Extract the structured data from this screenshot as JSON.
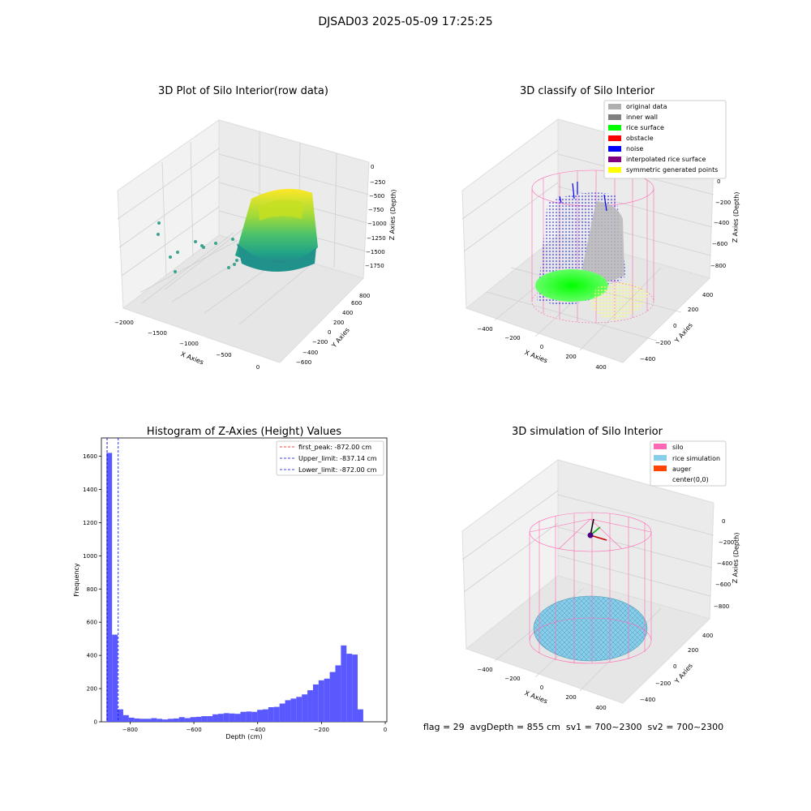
{
  "figure": {
    "title": "DJSAD03 2025-05-09 17:25:25",
    "footer": "flag = 29  avgDepth = 855 cm  sv1 = 700~2300  sv2 = 700~2300"
  },
  "colors": {
    "hist_bar": "#5050ff",
    "first_peak": "#ff0000",
    "limit_lines": "#0000ff",
    "silo_wire": "#ff69b4",
    "rice_sim": "#87ceeb",
    "auger": "#ff4500",
    "original": "#b0b0b0",
    "inner_wall": "#808080",
    "rice_surface": "#00ff00",
    "obstacle": "#ff0000",
    "noise": "#0000ff",
    "interp": "#800080",
    "symmetric": "#ffff00"
  },
  "chart_data": [
    {
      "type": "scatter",
      "subtype": "3d",
      "title": "3D Plot of Silo Interior(row data)",
      "xlabel": "X Axies",
      "ylabel": "Y Axies",
      "zlabel": "Z Axies (Depth)",
      "x_ticks": [
        "−2000",
        "−1500",
        "−1000",
        "−500",
        "0"
      ],
      "y_ticks": [
        "−600",
        "−400",
        "−200",
        "0",
        "200",
        "400",
        "600",
        "800"
      ],
      "z_ticks": [
        "0",
        "−250",
        "−500",
        "−750",
        "−1000",
        "−1250",
        "−1500",
        "−1750"
      ],
      "colormap": "viridis"
    },
    {
      "type": "scatter",
      "subtype": "3d",
      "title": "3D classify of Silo Interior",
      "xlabel": "X Axies",
      "ylabel": "Y Axies",
      "zlabel": "Z Axies (Depth)",
      "x_ticks": [
        "−400",
        "−200",
        "0",
        "200",
        "400"
      ],
      "y_ticks": [
        "−400",
        "−200",
        "0",
        "200",
        "400"
      ],
      "z_ticks": [
        "0",
        "−200",
        "−400",
        "−600",
        "−800"
      ],
      "legend": [
        "original data",
        "inner wall",
        "rice surface",
        "obstacle",
        "noise",
        "interpolated rice surface",
        "symmetric generated points"
      ],
      "legend_position": "top-right"
    },
    {
      "type": "bar",
      "subtype": "histogram",
      "title": "Histogram of Z-Axies (Height) Values",
      "xlabel": "Depth (cm)",
      "ylabel": "Frequency",
      "xlim": [
        -890,
        5
      ],
      "ylim": [
        0,
        1710
      ],
      "x_ticks": [
        "−800",
        "−600",
        "−400",
        "−200",
        "0"
      ],
      "x_tick_values": [
        -800,
        -600,
        -400,
        -200,
        0
      ],
      "y_ticks": [
        "0",
        "200",
        "400",
        "600",
        "800",
        "1000",
        "1200",
        "1400",
        "1600"
      ],
      "y_tick_values": [
        0,
        200,
        400,
        600,
        800,
        1000,
        1200,
        1400,
        1600
      ],
      "bin_start": -874,
      "bin_width": 17.5,
      "values": [
        1620,
        525,
        75,
        40,
        25,
        20,
        18,
        18,
        22,
        18,
        14,
        18,
        20,
        28,
        22,
        28,
        30,
        34,
        34,
        45,
        48,
        52,
        50,
        48,
        60,
        62,
        60,
        72,
        75,
        88,
        90,
        110,
        130,
        140,
        150,
        165,
        190,
        225,
        250,
        260,
        300,
        340,
        460,
        410,
        405,
        75
      ],
      "vlines": [
        {
          "label": "first_peak: -872.00 cm",
          "x": -872.0,
          "style": "dashed",
          "color": "red"
        },
        {
          "label": "Upper_limit: -837.14 cm",
          "x": -837.14,
          "style": "dashed",
          "color": "blue"
        },
        {
          "label": "Lower_limit: -872.00 cm",
          "x": -872.0,
          "style": "dashed",
          "color": "blue"
        }
      ],
      "legend_position": "top-right"
    },
    {
      "type": "scatter",
      "subtype": "3d",
      "title": "3D simulation of Silo Interior",
      "xlabel": "X Axies",
      "ylabel": "Y Axies",
      "zlabel": "Z Axies (Depth)",
      "x_ticks": [
        "−400",
        "−200",
        "0",
        "200",
        "400"
      ],
      "y_ticks": [
        "−400",
        "−200",
        "0",
        "200",
        "400"
      ],
      "z_ticks": [
        "0",
        "−200",
        "−400",
        "−600",
        "−800"
      ],
      "legend": [
        "silo",
        "rice simulation",
        "auger",
        "center(0,0)"
      ],
      "legend_position": "top-right"
    }
  ]
}
